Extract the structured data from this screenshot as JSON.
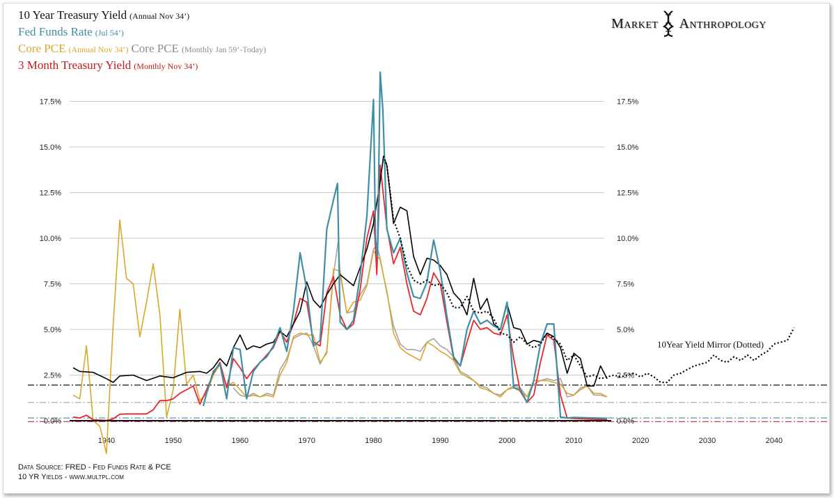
{
  "legend": {
    "ten_year": "10 Year Treasury Yield",
    "ten_year_note": "(Annual Nov 34’)",
    "fed_funds": "Fed Funds Rate",
    "fed_funds_note": "(Jul 54’)",
    "core_pce_annual": "Core PCE",
    "core_pce_annual_note": "(Annual Nov 34’)",
    "core_pce_monthly": "Core PCE",
    "core_pce_monthly_note": "(Monthly Jan 59’-Today)",
    "three_month": "3 Month Treasury Yield",
    "three_month_note": "(Monthly Nov 34’)"
  },
  "brand": {
    "word1": "Market",
    "word2": "Anthropology"
  },
  "annotation": "10Year Yield Mirror (Dotted)",
  "source": {
    "line1": "Data Source: FRED - Fed Funds Rate & PCE",
    "line2": "10 YR Yields - www.multpl.com"
  },
  "colors": {
    "ten_year": "#000000",
    "fed_funds": "#3e8ea6",
    "core_pce_annual": "#d9a72c",
    "core_pce_monthly": "#a5a5a5",
    "three_month": "#e8262a"
  },
  "chart_data": {
    "type": "line",
    "xlim": [
      1935,
      2045
    ],
    "ylim": [
      -2.0,
      19.0
    ],
    "x_ticks": [
      "1940",
      "1950",
      "1960",
      "1970",
      "1980",
      "1990",
      "2000",
      "2010",
      "2020",
      "2030",
      "2040"
    ],
    "x_tick_values": [
      1940,
      1950,
      1960,
      1970,
      1980,
      1990,
      2000,
      2010,
      2020,
      2030,
      2040
    ],
    "y_ticks": [
      "0.0%",
      "2.5%",
      "5.0%",
      "7.5%",
      "10.0%",
      "12.5%",
      "15.0%",
      "17.5%"
    ],
    "y_tick_values": [
      0,
      2.5,
      5,
      7.5,
      10,
      12.5,
      15,
      17.5
    ],
    "grid": "horizontal",
    "reference_lines": [
      {
        "y": 1.95,
        "color": "#111111",
        "style": "dashdot"
      },
      {
        "y": 1.0,
        "color": "#a5a5a5",
        "style": "dashdot"
      },
      {
        "y": 0.15,
        "color": "#3e8ea6",
        "style": "dashdot"
      },
      {
        "y": -0.05,
        "color": "#d0204a",
        "style": "dashdot"
      }
    ],
    "series": [
      {
        "name": "10 Year Treasury Yield",
        "color": "#000000",
        "width": 1.6,
        "x": [
          1935,
          1936,
          1938,
          1940,
          1941,
          1942,
          1944,
          1946,
          1948,
          1950,
          1952,
          1954,
          1955,
          1956,
          1957,
          1958,
          1959,
          1960,
          1961,
          1962,
          1963,
          1964,
          1965,
          1966,
          1967,
          1968,
          1969,
          1970,
          1971,
          1972,
          1973,
          1974,
          1975,
          1976,
          1977,
          1978,
          1979,
          1980,
          1981,
          1981.5,
          1982,
          1983,
          1984,
          1985,
          1986,
          1987,
          1988,
          1989,
          1990,
          1991,
          1992,
          1993,
          1994,
          1995,
          1996,
          1997,
          1998,
          1999,
          2000,
          2001,
          2002,
          2003,
          2004,
          2005,
          2006,
          2007,
          2008,
          2009,
          2010,
          2011,
          2012,
          2013,
          2014,
          2015
        ],
        "y": [
          2.9,
          2.7,
          2.65,
          2.3,
          2.1,
          2.45,
          2.5,
          2.2,
          2.45,
          2.35,
          2.65,
          2.7,
          2.6,
          2.9,
          3.4,
          3.0,
          4.0,
          4.7,
          3.9,
          4.1,
          4.0,
          4.2,
          4.3,
          4.9,
          4.6,
          5.3,
          6.0,
          7.6,
          6.6,
          6.2,
          6.9,
          7.5,
          8.0,
          7.7,
          7.4,
          8.4,
          9.4,
          10.8,
          13.1,
          14.5,
          14.0,
          10.8,
          11.7,
          11.5,
          9.0,
          8.0,
          8.9,
          8.8,
          8.5,
          8.0,
          7.0,
          6.6,
          5.8,
          7.8,
          6.1,
          6.7,
          5.3,
          5.0,
          6.4,
          5.1,
          5.0,
          4.2,
          4.4,
          4.3,
          4.8,
          4.6,
          4.0,
          2.6,
          3.7,
          3.4,
          1.9,
          1.9,
          3.0,
          2.3
        ]
      },
      {
        "name": "10Year Yield Mirror (Dotted)",
        "color": "#000000",
        "width": 2.2,
        "dash": "2,3",
        "x": [
          1981.5,
          1982,
          1983,
          1984,
          1985,
          1986,
          1987,
          1988,
          1989,
          1990,
          1991,
          1992,
          1993,
          1994,
          1995,
          1996,
          1997,
          1998,
          1999,
          2000,
          2001,
          2002,
          2003,
          2004,
          2005,
          2006,
          2007,
          2008,
          2009,
          2010,
          2011,
          2012,
          2013,
          2014,
          2015,
          2016,
          2017,
          2018,
          2019,
          2020,
          2021,
          2022,
          2023,
          2024,
          2025,
          2026,
          2027,
          2028,
          2029,
          2030,
          2031,
          2032,
          2033,
          2034,
          2035,
          2036,
          2037,
          2038,
          2039,
          2040,
          2041,
          2042,
          2043
        ],
        "y": [
          14.5,
          14.0,
          11.0,
          10.0,
          8.5,
          7.7,
          7.5,
          7.7,
          7.4,
          7.5,
          7.0,
          6.2,
          6.2,
          6.8,
          6.0,
          5.9,
          6.0,
          5.6,
          4.8,
          4.7,
          4.3,
          4.6,
          4.2,
          4.0,
          4.2,
          4.8,
          4.5,
          4.2,
          3.3,
          3.6,
          3.0,
          2.4,
          2.5,
          2.3,
          2.4,
          2.5,
          2.4,
          2.5,
          2.6,
          2.4,
          2.6,
          2.4,
          2.1,
          2.1,
          2.5,
          2.6,
          2.8,
          3.0,
          3.1,
          3.2,
          3.6,
          3.3,
          3.2,
          3.5,
          3.3,
          3.6,
          3.3,
          3.6,
          3.8,
          4.2,
          4.3,
          4.4,
          5.1
        ]
      },
      {
        "name": "Core PCE (Annual Nov 34’)",
        "color": "#d9a72c",
        "width": 1.6,
        "x": [
          1935,
          1936,
          1937,
          1938,
          1939,
          1940,
          1941,
          1942,
          1943,
          1944,
          1945,
          1946,
          1947,
          1948,
          1949,
          1950,
          1951,
          1952,
          1953,
          1954,
          1955,
          1956,
          1957,
          1958,
          1959,
          1960,
          1961,
          1962,
          1963,
          1964,
          1965,
          1966,
          1967,
          1968,
          1969,
          1970,
          1971,
          1972,
          1973,
          1974,
          1975,
          1976,
          1977,
          1978,
          1979,
          1980,
          1981,
          1982,
          1983,
          1984,
          1985,
          1986,
          1987,
          1988,
          1989,
          1990,
          1991,
          1992,
          1993,
          1994,
          1995,
          1996,
          1997,
          1998,
          1999,
          2000,
          2001,
          2002,
          2003,
          2004,
          2005,
          2006,
          2007,
          2008,
          2009,
          2010,
          2011,
          2012,
          2013,
          2014,
          2015
        ],
        "y": [
          1.4,
          1.2,
          4.1,
          0.0,
          -0.3,
          -1.8,
          5.2,
          11.0,
          7.8,
          7.5,
          4.6,
          6.5,
          8.6,
          5.8,
          0.2,
          1.7,
          6.1,
          2.0,
          2.5,
          1.1,
          1.5,
          2.5,
          3.1,
          1.9,
          2.1,
          1.7,
          1.3,
          1.4,
          1.3,
          1.4,
          1.3,
          2.5,
          3.2,
          4.6,
          4.8,
          4.7,
          4.7,
          3.2,
          3.7,
          8.3,
          8.2,
          5.9,
          6.5,
          6.6,
          7.4,
          9.3,
          8.8,
          7.1,
          4.8,
          4.0,
          3.7,
          3.5,
          3.3,
          4.3,
          4.1,
          3.8,
          3.6,
          3.3,
          2.6,
          2.4,
          2.2,
          1.8,
          1.7,
          1.5,
          1.3,
          1.7,
          1.8,
          1.6,
          1.3,
          2.2,
          2.2,
          2.2,
          2.1,
          2.0,
          1.5,
          1.4,
          1.7,
          1.9,
          1.5,
          1.5,
          1.3
        ]
      },
      {
        "name": "Core PCE (Monthly Jan 59’-Today)",
        "color": "#a5a5a5",
        "width": 1.6,
        "x": [
          1959,
          1960,
          1961,
          1962,
          1963,
          1964,
          1965,
          1966,
          1967,
          1968,
          1969,
          1970,
          1970.5,
          1971,
          1972,
          1973,
          1974,
          1974.7,
          1975,
          1976,
          1977,
          1978,
          1979,
          1980,
          1980.5,
          1981,
          1982,
          1983,
          1984,
          1985,
          1986,
          1987,
          1988,
          1989,
          1990,
          1991,
          1992,
          1993,
          1994,
          1995,
          1996,
          1997,
          1998,
          1999,
          2000,
          2001,
          2002,
          2003,
          2004,
          2005,
          2006,
          2007,
          2008,
          2009,
          2010,
          2011,
          2012,
          2013,
          2014,
          2015
        ],
        "y": [
          1.8,
          1.4,
          1.3,
          1.5,
          1.3,
          1.5,
          1.4,
          2.8,
          3.4,
          4.5,
          4.7,
          4.8,
          4.5,
          4.1,
          3.1,
          3.8,
          8.0,
          9.8,
          8.0,
          5.9,
          6.0,
          6.9,
          7.5,
          9.4,
          9.6,
          8.9,
          7.0,
          5.2,
          4.2,
          3.9,
          3.9,
          3.8,
          4.3,
          4.5,
          4.1,
          3.9,
          3.5,
          2.7,
          2.5,
          2.2,
          1.9,
          1.8,
          1.5,
          1.4,
          1.7,
          1.9,
          1.8,
          1.3,
          2.0,
          2.2,
          2.3,
          2.2,
          2.3,
          1.3,
          1.4,
          1.8,
          1.9,
          1.4,
          1.4,
          1.3
        ]
      },
      {
        "name": "3 Month Treasury Yield (Monthly Nov 34’)",
        "color": "#e8262a",
        "width": 1.8,
        "x": [
          1935,
          1936,
          1937,
          1938,
          1939,
          1940,
          1941,
          1942,
          1943,
          1944,
          1945,
          1946,
          1947,
          1948,
          1949,
          1950,
          1951,
          1952,
          1953,
          1954,
          1955,
          1956,
          1957,
          1958,
          1959,
          1960,
          1961,
          1962,
          1963,
          1964,
          1965,
          1966,
          1967,
          1968,
          1969,
          1970,
          1971,
          1972,
          1973,
          1974,
          1975,
          1976,
          1977,
          1978,
          1979,
          1980,
          1980.5,
          1981,
          1982,
          1983,
          1984,
          1985,
          1986,
          1987,
          1988,
          1989,
          1990,
          1991,
          1992,
          1993,
          1994,
          1995,
          1996,
          1997,
          1998,
          1999,
          2000,
          2001,
          2002,
          2003,
          2004,
          2005,
          2006,
          2007,
          2008,
          2009,
          2010,
          2015
        ],
        "y": [
          0.2,
          0.15,
          0.3,
          0.05,
          0.03,
          0.01,
          0.1,
          0.35,
          0.37,
          0.37,
          0.37,
          0.37,
          0.6,
          1.1,
          1.1,
          1.2,
          1.5,
          1.7,
          1.9,
          0.9,
          1.7,
          2.6,
          3.2,
          1.8,
          3.4,
          2.9,
          2.3,
          2.8,
          3.2,
          3.6,
          4.0,
          4.9,
          4.3,
          5.3,
          6.7,
          6.5,
          4.3,
          4.1,
          7.0,
          7.9,
          5.8,
          5.0,
          5.3,
          7.2,
          10.0,
          11.5,
          8.0,
          14.0,
          10.6,
          8.6,
          9.5,
          7.5,
          6.0,
          5.8,
          6.7,
          8.1,
          7.5,
          5.4,
          3.4,
          3.0,
          4.3,
          5.5,
          5.0,
          5.1,
          4.8,
          4.7,
          5.8,
          3.4,
          1.6,
          1.0,
          1.4,
          3.2,
          4.7,
          4.4,
          1.4,
          0.15,
          0.12,
          0.05
        ]
      },
      {
        "name": "Fed Funds Rate (Jul 54’)",
        "color": "#3e8ea6",
        "width": 2.2,
        "x": [
          1954.5,
          1955,
          1956,
          1957,
          1958,
          1959,
          1960,
          1961,
          1962,
          1963,
          1964,
          1965,
          1966,
          1967,
          1968,
          1969,
          1970,
          1971,
          1972,
          1973,
          1974,
          1974.6,
          1975,
          1976,
          1977,
          1978,
          1979,
          1980,
          1980.3,
          1980.6,
          1981,
          1981.4,
          1982,
          1983,
          1984,
          1985,
          1986,
          1987,
          1988,
          1989,
          1990,
          1991,
          1992,
          1993,
          1994,
          1995,
          1996,
          1997,
          1998,
          1999,
          2000,
          2001,
          2002,
          2003,
          2004,
          2005,
          2006,
          2007,
          2008,
          2009,
          2010,
          2015
        ],
        "y": [
          0.8,
          1.5,
          2.7,
          3.1,
          1.2,
          4.0,
          3.9,
          1.2,
          2.7,
          3.2,
          3.5,
          4.1,
          5.1,
          3.8,
          6.0,
          9.2,
          7.2,
          4.1,
          4.4,
          10.5,
          12.1,
          13.0,
          5.4,
          5.0,
          5.5,
          8.0,
          11.2,
          17.6,
          10.0,
          9.0,
          19.1,
          17.0,
          10.5,
          9.2,
          10.0,
          8.1,
          6.8,
          6.7,
          7.6,
          9.9,
          8.2,
          5.7,
          3.5,
          3.0,
          5.0,
          6.0,
          5.3,
          5.5,
          5.2,
          5.0,
          6.5,
          1.8,
          1.7,
          1.0,
          2.2,
          4.2,
          5.3,
          5.3,
          0.2,
          0.15,
          0.18,
          0.13
        ]
      }
    ]
  }
}
